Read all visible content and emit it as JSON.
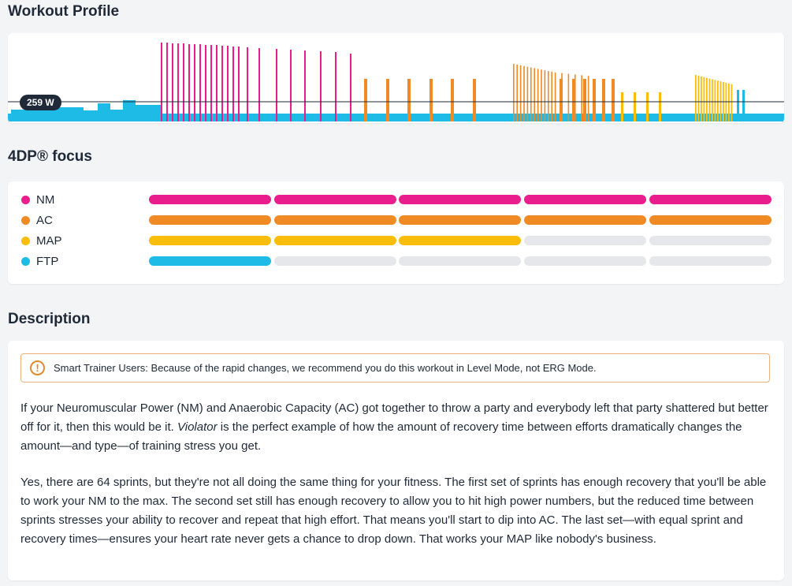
{
  "sections": {
    "profile_title": "Workout Profile",
    "focus_title": "4DP® focus",
    "description_title": "Description"
  },
  "profile": {
    "ftp_label": "259 W",
    "colors": {
      "ftp": "#1dbbe6",
      "nm": "#e91e8c",
      "ac": "#f08a24",
      "map": "#fbbd0b",
      "line": "#1f2937"
    }
  },
  "focus": {
    "rows": [
      {
        "label": "NM",
        "color": "#e91e8c",
        "level": 5
      },
      {
        "label": "AC",
        "color": "#f08a24",
        "level": 5
      },
      {
        "label": "MAP",
        "color": "#fbbd0b",
        "level": 3
      },
      {
        "label": "FTP",
        "color": "#1dbbe6",
        "level": 1
      }
    ],
    "max_level": 5,
    "empty_color": "#e5e7eb"
  },
  "description": {
    "notice": "Smart Trainer Users: Because of the rapid changes, we recommend you do this workout in Level Mode, not ERG Mode.",
    "notice_icon": "warning-icon",
    "p1_a": "If your Neuromuscular Power (NM) and Anaerobic Capacity (AC) got together to throw a party and everybody left that party shattered but better off for it, then this would be it. ",
    "p1_em": "Violator",
    "p1_b": " is the perfect example of how the amount of recovery time between efforts dramatically changes the amount—and type—of training stress you get.",
    "p2": "Yes, there are 64 sprints, but they're not all doing the same thing for your fitness. The first set of sprints has enough recovery that you'll be able to work your NM to the max. The second set still has enough recovery to allow you to hit high power numbers, but the reduced time between sprints stresses your ability to recover and repeat that high effort. That means you'll start to dip into AC. The last set—with equal sprint and recovery times—ensures your heart rate never gets a chance to drop down. That works your MAP like nobody's business."
  }
}
